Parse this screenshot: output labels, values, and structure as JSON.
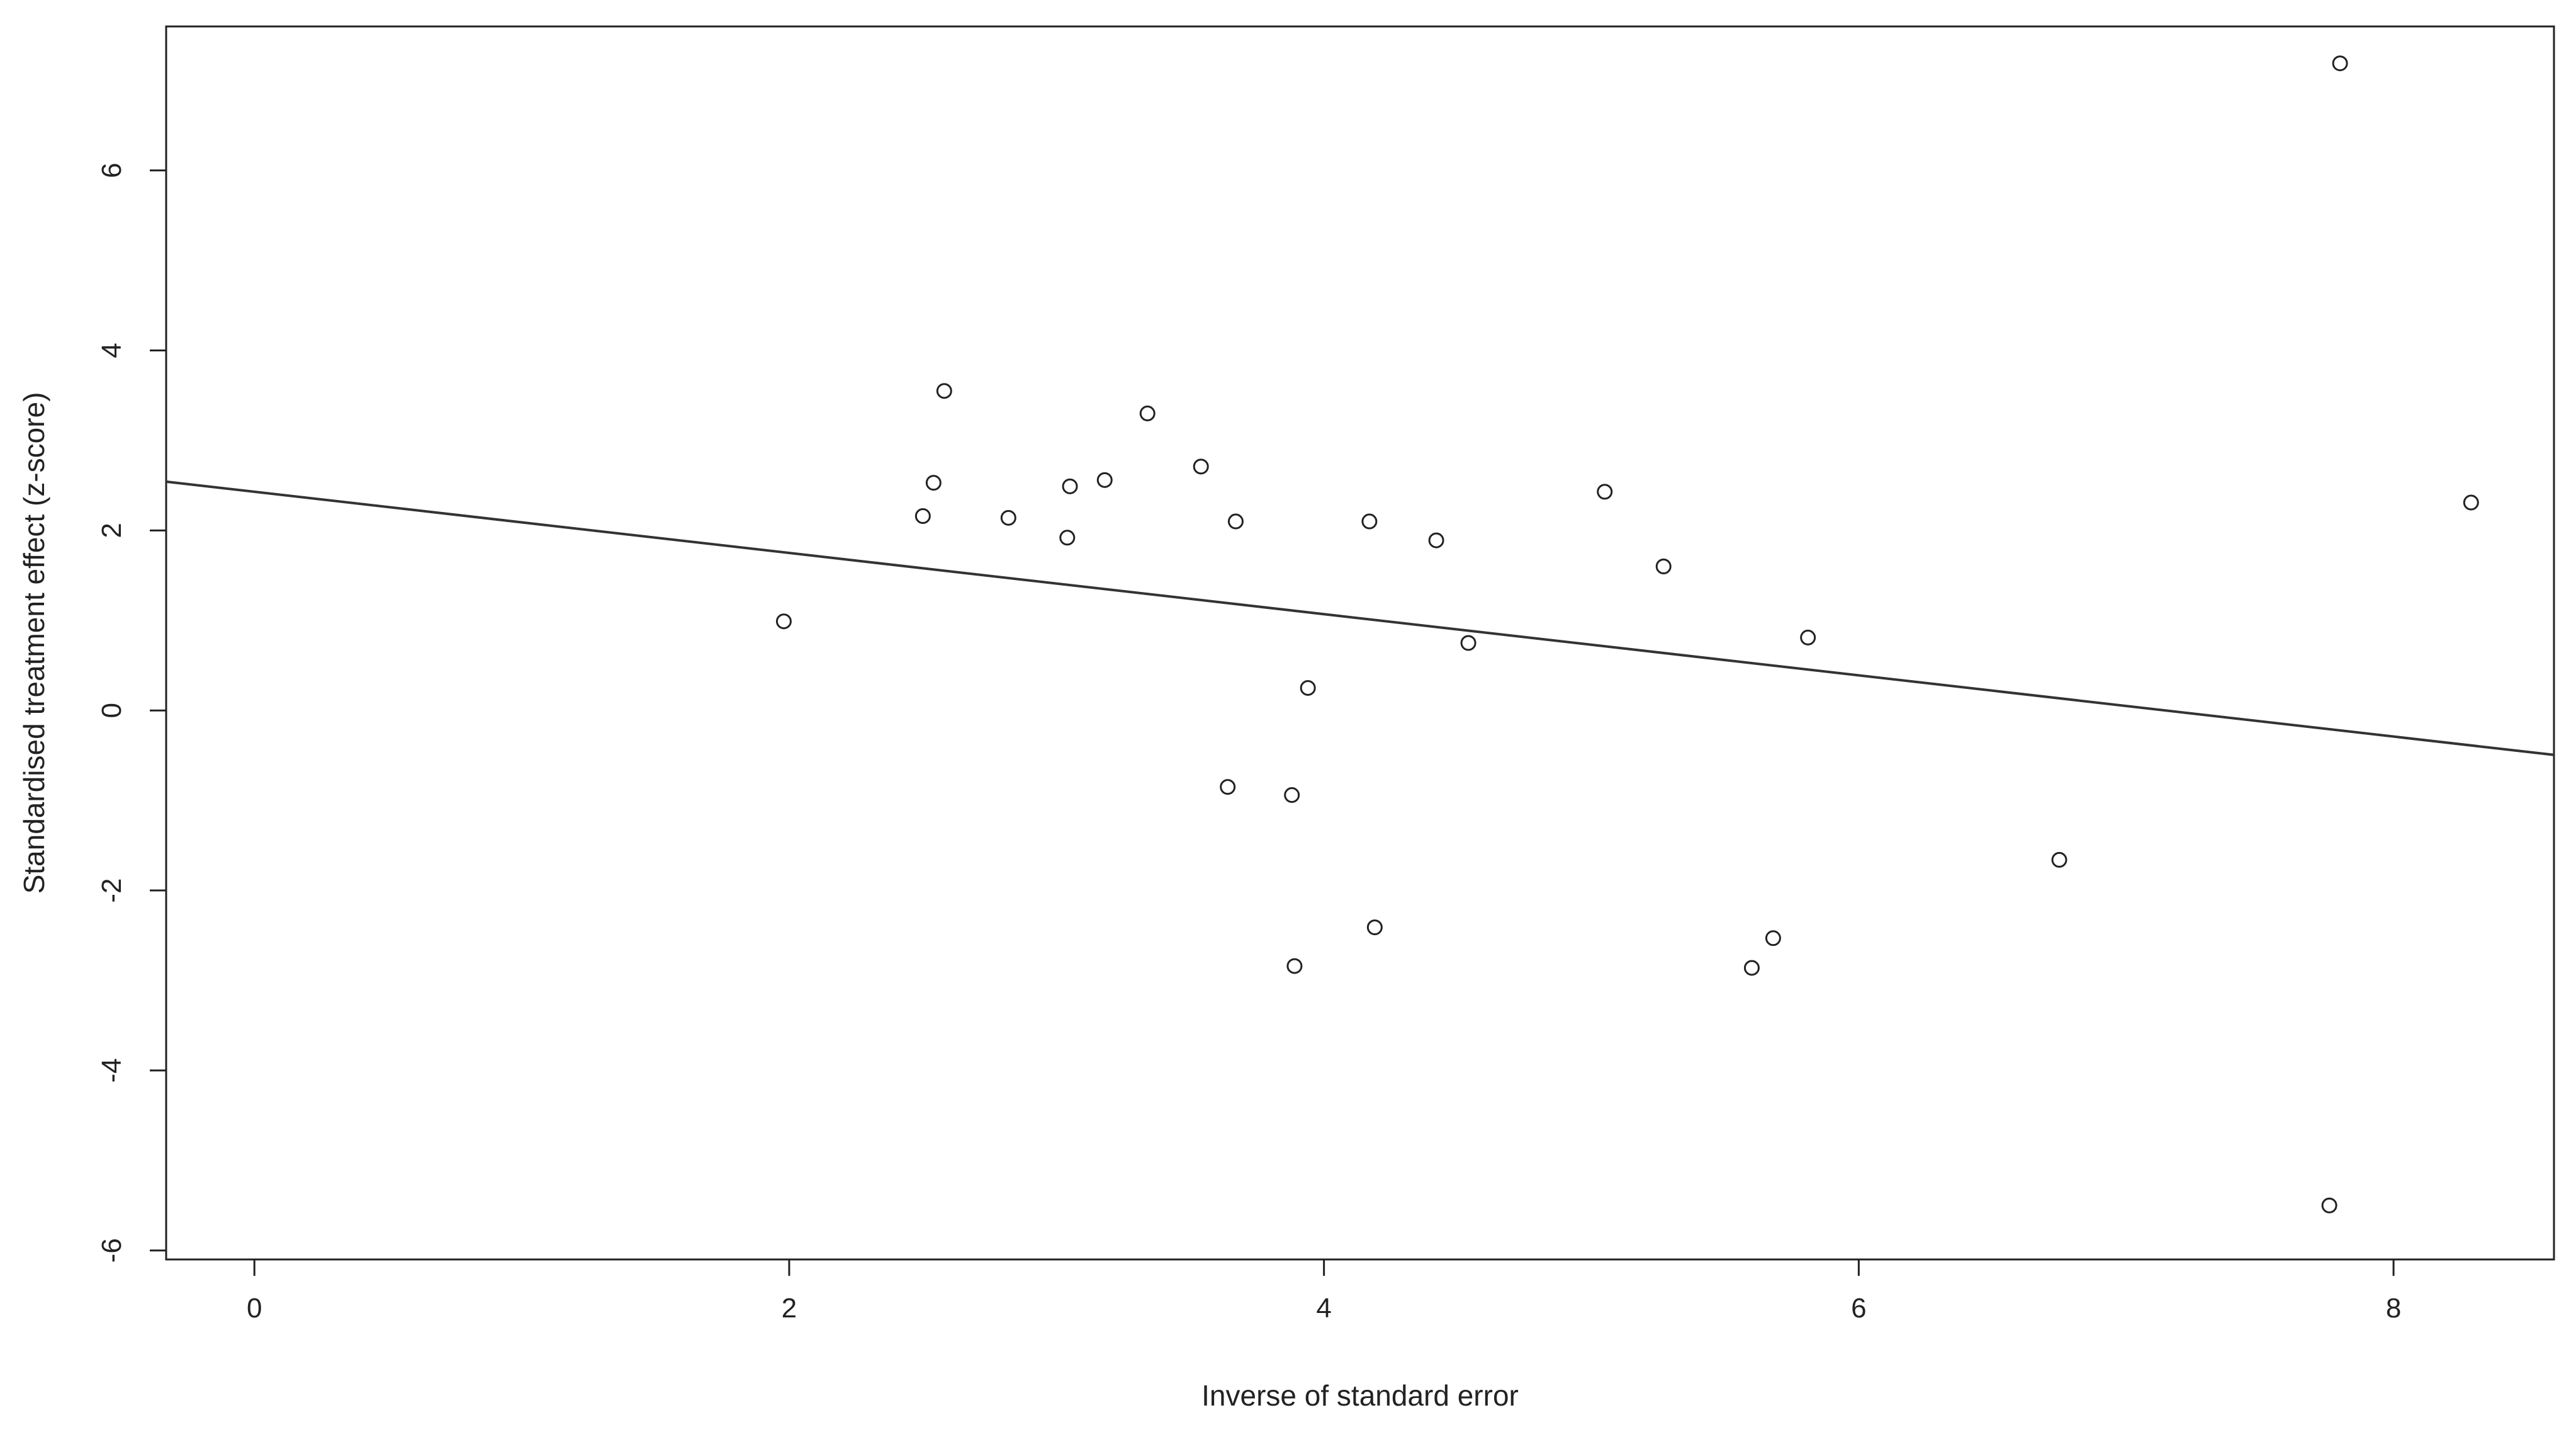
{
  "chart_data": {
    "type": "scatter",
    "xlabel": "Inverse of standard error",
    "ylabel": "Standardised treatment effect (z-score)",
    "xlim": [
      -0.33,
      8.6
    ],
    "ylim": [
      -6.1,
      7.6
    ],
    "x_ticks": [
      0,
      2,
      4,
      6,
      8
    ],
    "y_ticks": [
      -6,
      -4,
      -2,
      0,
      2,
      4,
      6
    ],
    "x_tick_labels": [
      "0",
      "2",
      "4",
      "6",
      "8"
    ],
    "y_tick_labels": [
      "-6",
      "-4",
      "-2",
      "0",
      "2",
      "4",
      "6"
    ],
    "grid": false,
    "marker": "open-circle",
    "points": [
      {
        "x": 1.98,
        "y": 0.99
      },
      {
        "x": 2.5,
        "y": 2.16
      },
      {
        "x": 2.54,
        "y": 2.53
      },
      {
        "x": 2.58,
        "y": 3.55
      },
      {
        "x": 2.82,
        "y": 2.14
      },
      {
        "x": 3.04,
        "y": 1.92
      },
      {
        "x": 3.05,
        "y": 2.49
      },
      {
        "x": 3.18,
        "y": 2.56
      },
      {
        "x": 3.34,
        "y": 3.3
      },
      {
        "x": 3.54,
        "y": 2.71
      },
      {
        "x": 3.64,
        "y": -0.85
      },
      {
        "x": 3.67,
        "y": 2.1
      },
      {
        "x": 3.88,
        "y": -0.94
      },
      {
        "x": 3.89,
        "y": -2.84
      },
      {
        "x": 3.94,
        "y": 0.25
      },
      {
        "x": 4.17,
        "y": 2.1
      },
      {
        "x": 4.19,
        "y": -2.41
      },
      {
        "x": 4.42,
        "y": 1.89
      },
      {
        "x": 4.54,
        "y": 0.75
      },
      {
        "x": 5.05,
        "y": 2.43
      },
      {
        "x": 5.27,
        "y": 1.6
      },
      {
        "x": 5.6,
        "y": -2.86
      },
      {
        "x": 5.68,
        "y": -2.53
      },
      {
        "x": 5.81,
        "y": 0.81
      },
      {
        "x": 6.75,
        "y": -1.66
      },
      {
        "x": 7.76,
        "y": -5.5
      },
      {
        "x": 7.8,
        "y": 7.19
      },
      {
        "x": 8.29,
        "y": 2.31
      }
    ],
    "regression_line": {
      "intercept": 2.43,
      "slope": -0.34
    }
  }
}
